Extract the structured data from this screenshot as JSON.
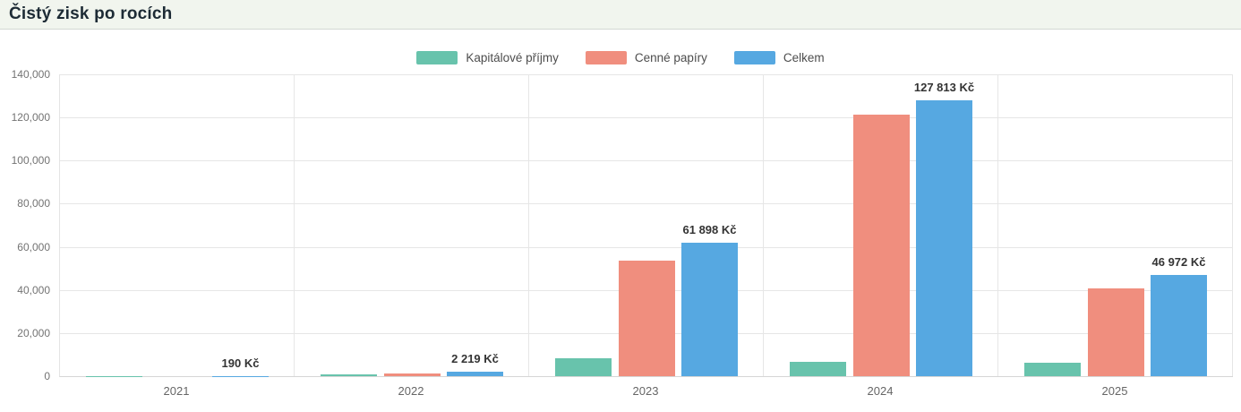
{
  "header": {
    "title": "Čistý zisk po rocích"
  },
  "colors": {
    "header_bg": "#f1f5ee",
    "series_teal": "#68c3ac",
    "series_salmon": "#f08e7e",
    "series_blue": "#56a8e1",
    "grid": "#e6e6e6",
    "axis": "#d6d6d6",
    "tick_text": "#737373",
    "value_label_text": "#333333"
  },
  "chart_data": {
    "type": "bar",
    "title": "Čistý zisk po rocích",
    "categories": [
      "2021",
      "2022",
      "2023",
      "2024",
      "2025"
    ],
    "series": [
      {
        "name": "Kapitálové příjmy",
        "color": "#68c3ac",
        "values": [
          160,
          900,
          8500,
          6500,
          6300
        ]
      },
      {
        "name": "Cenné papíry",
        "color": "#f08e7e",
        "values": [
          30,
          1300,
          53400,
          121300,
          40700
        ]
      },
      {
        "name": "Celkem",
        "color": "#56a8e1",
        "values": [
          190,
          2219,
          61898,
          127813,
          46972
        ]
      }
    ],
    "total_labels": [
      "190 Kč",
      "2 219 Kč",
      "61 898 Kč",
      "127 813 Kč",
      "46 972 Kč"
    ],
    "unit": "Kč",
    "xlabel": "",
    "ylabel": "",
    "ylim": [
      0,
      140000
    ],
    "ytick_step": 20000,
    "ytick_labels": [
      "0",
      "20,000",
      "40,000",
      "60,000",
      "80,000",
      "100,000",
      "120,000",
      "140,000"
    ],
    "grid": true,
    "legend_position": "top"
  }
}
